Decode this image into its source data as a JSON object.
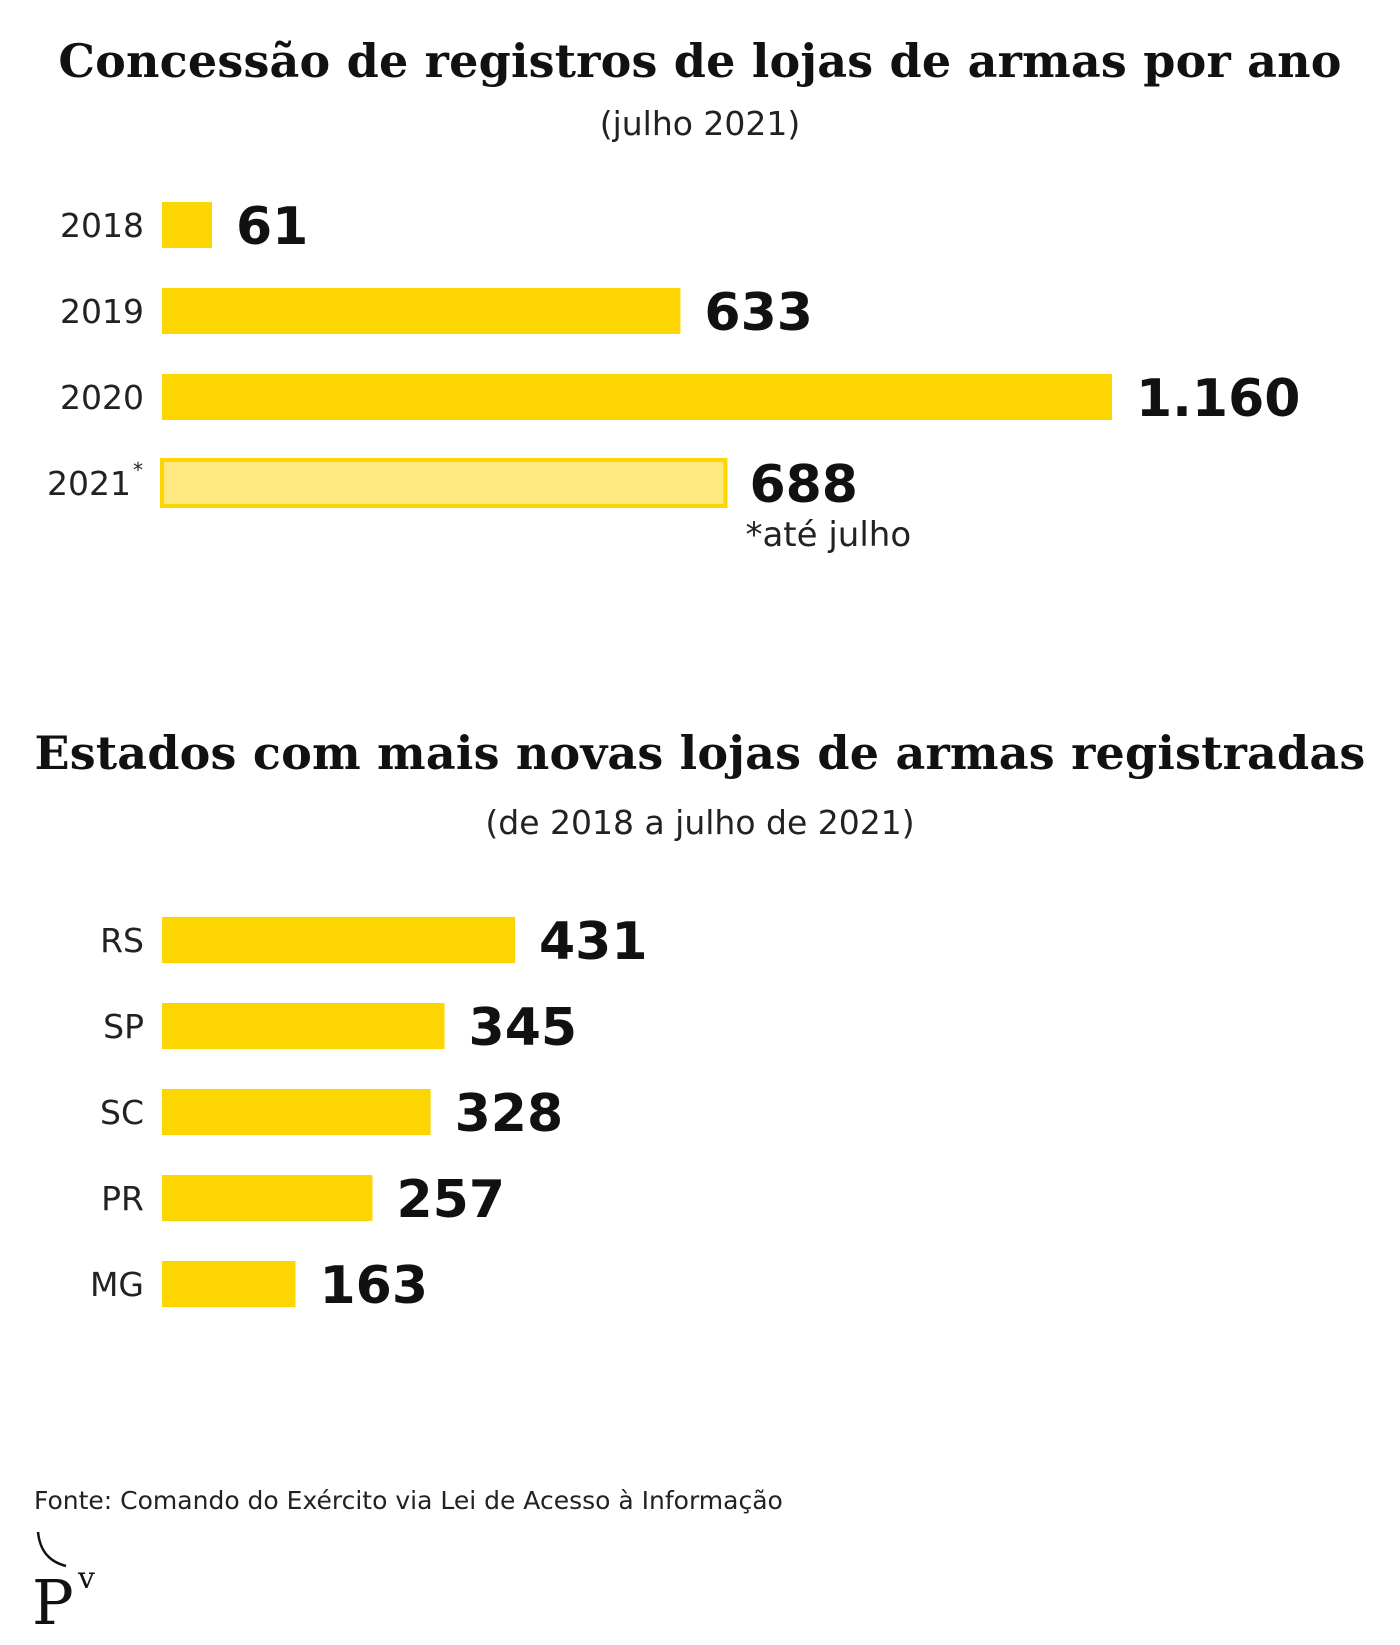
{
  "colors": {
    "bar": "#FDD500",
    "bar_partial_fill": "#FDE97F",
    "bar_partial_stroke": "#FDD500",
    "text": "#111111"
  },
  "chart_data": [
    {
      "type": "bar",
      "orientation": "horizontal",
      "title": "Concessão de registros de lojas de armas por ano",
      "subtitle": "(julho 2021)",
      "categories": [
        "2018",
        "2019",
        "2020",
        "2021"
      ],
      "category_markers": [
        "",
        "",
        "",
        "*"
      ],
      "values": [
        61,
        633,
        1160,
        688
      ],
      "value_labels": [
        "61",
        "633",
        "1.160",
        "688"
      ],
      "partial": [
        false,
        false,
        false,
        true
      ],
      "note": "*até julho",
      "xlim": [
        0,
        1160
      ],
      "grid": false,
      "legend": "none"
    },
    {
      "type": "bar",
      "orientation": "horizontal",
      "title": "Estados com mais novas lojas de armas registradas",
      "subtitle": "(de 2018 a julho de 2021)",
      "categories": [
        "RS",
        "SP",
        "SC",
        "PR",
        "MG"
      ],
      "values": [
        431,
        345,
        328,
        257,
        163
      ],
      "value_labels": [
        "431",
        "345",
        "328",
        "257",
        "163"
      ],
      "xlim": [
        0,
        1160
      ],
      "grid": false,
      "legend": "none"
    }
  ],
  "source": "Fonte: Comando do Exército via Lei de Acesso à Informação",
  "logo": {
    "icon": "pv-logo-icon",
    "text": "P"
  }
}
